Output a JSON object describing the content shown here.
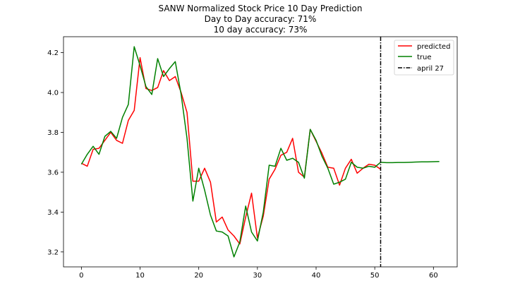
{
  "chart_data": {
    "type": "line",
    "title": [
      "SANW Normalized Stock Price 10 Day Prediction",
      "Day to Day accuracy: 71%",
      "10 day accuracy: 73%"
    ],
    "xlabel": "",
    "ylabel": "",
    "xlim": [
      -3.05,
      64.05
    ],
    "ylim": [
      3.125,
      4.28
    ],
    "xticks": [
      0,
      10,
      20,
      30,
      40,
      50,
      60
    ],
    "yticks": [
      3.2,
      3.4,
      3.6,
      3.8,
      4.0,
      4.2
    ],
    "ytick_labels": [
      "3.2",
      "3.4",
      "3.6",
      "3.8",
      "4.0",
      "4.2"
    ],
    "grid": false,
    "legend_position": "top-right",
    "series": [
      {
        "name": "predicted",
        "color": "#ff0000",
        "x": [
          0,
          1,
          2,
          3,
          4,
          5,
          6,
          7,
          8,
          9,
          10,
          11,
          12,
          13,
          14,
          15,
          16,
          17,
          18,
          19,
          20,
          21,
          22,
          23,
          24,
          25,
          26,
          27,
          28,
          29,
          30,
          31,
          32,
          33,
          34,
          35,
          36,
          37,
          38,
          39,
          40,
          41,
          42,
          43,
          44,
          45,
          46,
          47,
          48,
          49,
          50,
          51
        ],
        "y": [
          3.645,
          3.63,
          3.715,
          3.72,
          3.76,
          3.8,
          3.76,
          3.745,
          3.86,
          3.91,
          4.175,
          4.02,
          4.01,
          4.025,
          4.11,
          4.06,
          4.08,
          4.0,
          3.9,
          3.555,
          3.555,
          3.62,
          3.55,
          3.35,
          3.375,
          3.31,
          3.28,
          3.24,
          3.375,
          3.495,
          3.27,
          3.38,
          3.565,
          3.615,
          3.685,
          3.7,
          3.77,
          3.6,
          3.575,
          3.815,
          3.755,
          3.695,
          3.625,
          3.62,
          3.535,
          3.62,
          3.665,
          3.595,
          3.62,
          3.64,
          3.635,
          3.615
        ]
      },
      {
        "name": "true",
        "color": "#008000",
        "x": [
          0,
          1,
          2,
          3,
          4,
          5,
          6,
          7,
          8,
          9,
          10,
          11,
          12,
          13,
          14,
          15,
          16,
          17,
          18,
          19,
          20,
          21,
          22,
          23,
          24,
          25,
          26,
          27,
          28,
          29,
          30,
          31,
          32,
          33,
          34,
          35,
          36,
          37,
          38,
          39,
          40,
          41,
          42,
          43,
          44,
          45,
          46,
          47,
          48,
          49,
          50,
          51,
          52,
          53,
          54,
          55,
          56,
          57,
          58,
          59,
          60,
          61
        ],
        "y": [
          3.64,
          3.69,
          3.73,
          3.69,
          3.78,
          3.805,
          3.77,
          3.875,
          3.94,
          4.23,
          4.135,
          4.03,
          3.99,
          4.17,
          4.08,
          4.12,
          4.155,
          3.99,
          3.77,
          3.455,
          3.62,
          3.51,
          3.385,
          3.305,
          3.3,
          3.28,
          3.175,
          3.25,
          3.43,
          3.3,
          3.255,
          3.4,
          3.635,
          3.63,
          3.72,
          3.66,
          3.67,
          3.65,
          3.57,
          3.815,
          3.76,
          3.68,
          3.62,
          3.54,
          3.55,
          3.565,
          3.65,
          3.625,
          3.62,
          3.63,
          3.625,
          3.65,
          3.648,
          3.648,
          3.649,
          3.649,
          3.65,
          3.651,
          3.652,
          3.652,
          3.653,
          3.654
        ]
      }
    ],
    "vlines": [
      {
        "name": "april 27",
        "x": 51,
        "color": "#000000",
        "style": "dashdot"
      }
    ]
  }
}
